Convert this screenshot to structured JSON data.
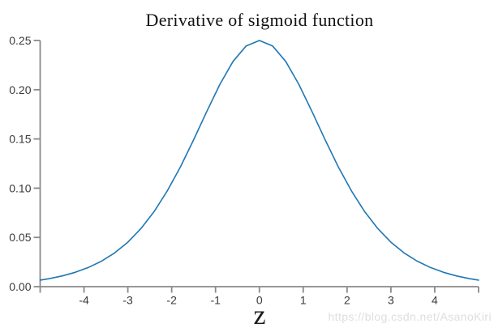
{
  "watermark": {
    "text": "https://blog.csdn.net/AsanoKiri"
  },
  "colors": {
    "curve": "#1f77b4",
    "axis": "#8a8a8a",
    "tick_label": "#3a3a3a",
    "title": "#111111",
    "watermark": "#dedede"
  },
  "chart_data": {
    "type": "line",
    "title": "Derivative of sigmoid function",
    "xlabel": "z",
    "ylabel": "",
    "xlim": [
      -5,
      5
    ],
    "ylim": [
      0,
      0.25
    ],
    "grid": false,
    "legend": "none",
    "x_ticks": [
      -4,
      -3,
      -2,
      -1,
      0,
      1,
      2,
      3,
      4
    ],
    "x_tick_labels": [
      "-4",
      "-3",
      "-2",
      "-1",
      "0",
      "1",
      "2",
      "3",
      "4"
    ],
    "y_ticks": [
      0,
      0.05,
      0.1,
      0.15,
      0.2,
      0.25
    ],
    "y_tick_labels": [
      "0.00",
      "0.05",
      "0.10",
      "0.15",
      "0.20",
      "0.25"
    ],
    "series": [
      {
        "name": "derivative of sigmoid",
        "x": [
          -5,
          -4.8,
          -4.5,
          -4.2,
          -3.9,
          -3.6,
          -3.3,
          -3,
          -2.7,
          -2.4,
          -2.1,
          -1.8,
          -1.5,
          -1.2,
          -0.9,
          -0.6,
          -0.3,
          0,
          0.3,
          0.6,
          0.9,
          1.2,
          1.5,
          1.8,
          2.1,
          2.4,
          2.7,
          3,
          3.3,
          3.6,
          3.9,
          4.2,
          4.5,
          4.8,
          5
        ],
        "y": [
          0.00665,
          0.0081,
          0.01087,
          0.01456,
          0.01945,
          0.02589,
          0.03431,
          0.04518,
          0.05901,
          0.07625,
          0.0972,
          0.12173,
          0.14915,
          0.17789,
          0.2055,
          0.22878,
          0.24446,
          0.25,
          0.24446,
          0.22878,
          0.2055,
          0.17789,
          0.14915,
          0.12173,
          0.0972,
          0.07625,
          0.05901,
          0.04518,
          0.03431,
          0.02589,
          0.01945,
          0.01456,
          0.01087,
          0.0081,
          0.00665
        ]
      }
    ]
  }
}
